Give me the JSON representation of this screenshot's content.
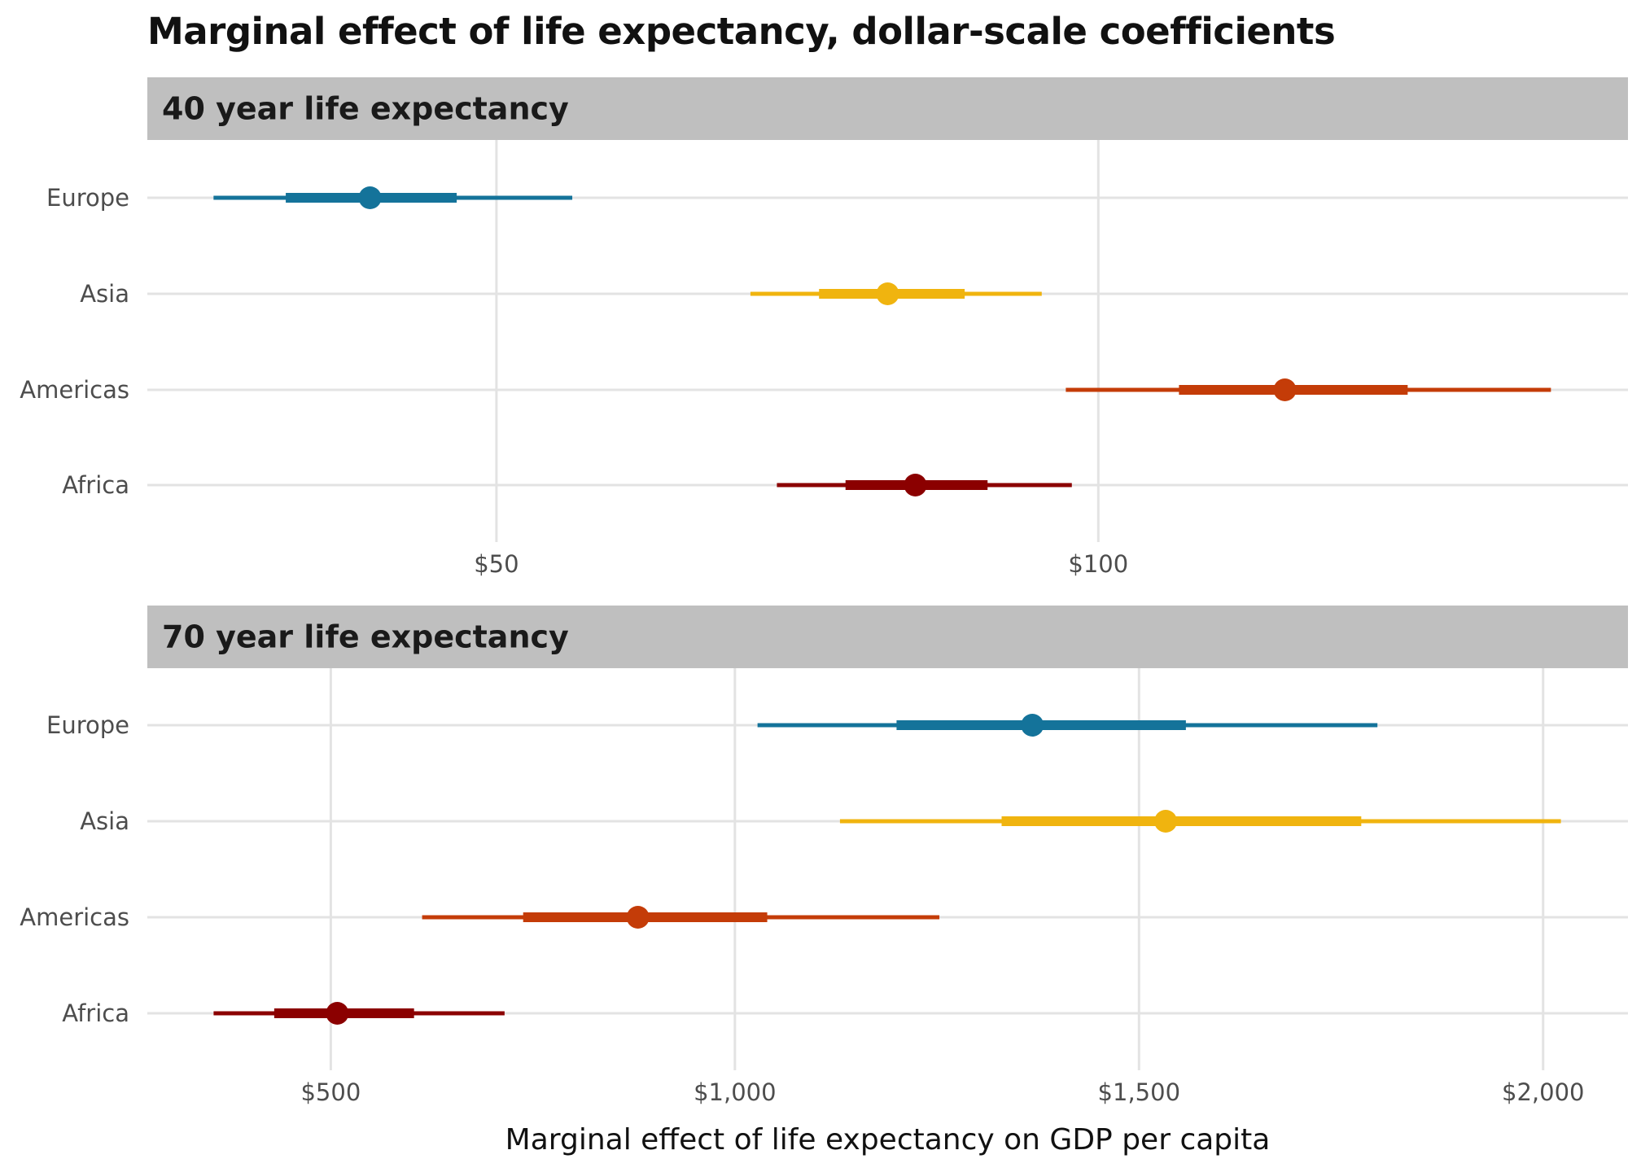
{
  "figure": {
    "title": "Marginal effect of life expectancy, dollar-scale coefficients",
    "xlabel": "Marginal effect of life expectancy on GDP per capita"
  },
  "chart_data": [
    {
      "type": "pointrange",
      "panel_title": "40 year life expectancy",
      "xlabel": "Marginal effect of life expectancy on GDP per capita",
      "xlim": [
        21,
        144
      ],
      "xticks": [
        50,
        100
      ],
      "xtick_labels": [
        "$50",
        "$100"
      ],
      "grid": true,
      "categories": [
        "Europe",
        "Asia",
        "Americas",
        "Africa"
      ],
      "colors": {
        "Europe": "#14739a",
        "Asia": "#f0b40f",
        "Americas": "#c43c08",
        "Africa": "#8b0000"
      },
      "estimate": {
        "Europe": 39.5,
        "Asia": 82.5,
        "Americas": 115.5,
        "Africa": 84.8
      },
      "interval_inner": {
        "Europe": [
          32.5,
          46.7
        ],
        "Asia": [
          76.8,
          88.9
        ],
        "Americas": [
          106.7,
          125.7
        ],
        "Africa": [
          79.0,
          90.8
        ]
      },
      "interval_outer": {
        "Europe": [
          26.5,
          56.3
        ],
        "Asia": [
          71.1,
          95.3
        ],
        "Americas": [
          97.3,
          137.6
        ],
        "Africa": [
          73.3,
          97.8
        ]
      }
    },
    {
      "type": "pointrange",
      "panel_title": "70 year life expectancy",
      "xlabel": "Marginal effect of life expectancy on GDP per capita",
      "xlim": [
        273,
        2105
      ],
      "xticks": [
        500,
        1000,
        1500,
        2000
      ],
      "xtick_labels": [
        "$500",
        "$1,000",
        "$1,500",
        "$2,000"
      ],
      "grid": true,
      "categories": [
        "Europe",
        "Asia",
        "Americas",
        "Africa"
      ],
      "colors": {
        "Europe": "#14739a",
        "Asia": "#f0b40f",
        "Americas": "#c43c08",
        "Africa": "#8b0000"
      },
      "estimate": {
        "Europe": 1368,
        "Asia": 1533,
        "Americas": 880,
        "Africa": 508
      },
      "interval_inner": {
        "Europe": [
          1200,
          1558
        ],
        "Asia": [
          1330,
          1775
        ],
        "Americas": [
          738,
          1040
        ],
        "Africa": [
          430,
          603
        ]
      },
      "interval_outer": {
        "Europe": [
          1028,
          1795
        ],
        "Asia": [
          1130,
          2022
        ],
        "Americas": [
          613,
          1253
        ],
        "Africa": [
          355,
          715
        ]
      }
    }
  ]
}
